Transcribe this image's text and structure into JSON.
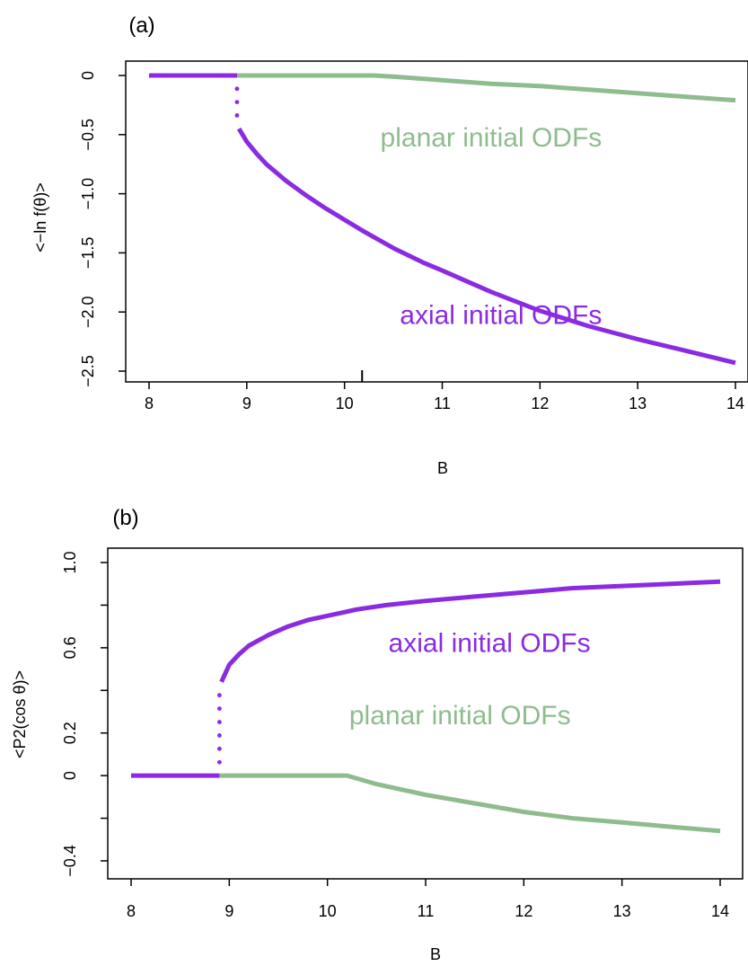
{
  "colors": {
    "axial": "#8a2be2",
    "planar": "#8fbc8f",
    "axis": "#000000"
  },
  "chart_data": [
    {
      "type": "line",
      "panel_label": "(a)",
      "xlabel": "B",
      "ylabel": "<−ln f(θ)>",
      "xlim": [
        8,
        14
      ],
      "ylim": [
        -2.5,
        0
      ],
      "x_ticks": [
        "8",
        "9",
        "10",
        "11",
        "12",
        "13",
        "14"
      ],
      "y_ticks": [
        "0",
        "-0.5",
        "-1.0",
        "-1.5",
        "-2.0",
        "-2.5"
      ],
      "grid": false,
      "marker_x": 10.18,
      "series": [
        {
          "key": "axial",
          "annotation": "axial initial ODFs",
          "annotation_at": [
            11.6,
            -2.1
          ],
          "x": [
            8.0,
            8.9,
            8.92,
            9.0,
            9.1,
            9.2,
            9.4,
            9.6,
            9.8,
            10.0,
            10.2,
            10.5,
            10.8,
            11.0,
            11.5,
            12.0,
            12.5,
            13.0,
            13.5,
            14.0
          ],
          "values": [
            0,
            0,
            -0.45,
            -0.56,
            -0.66,
            -0.75,
            -0.89,
            -1.01,
            -1.12,
            -1.22,
            -1.32,
            -1.46,
            -1.58,
            -1.65,
            -1.83,
            -1.99,
            -2.12,
            -2.23,
            -2.33,
            -2.43
          ],
          "jump": {
            "x": 8.9,
            "from": 0,
            "to": -0.45,
            "style": "dotted"
          }
        },
        {
          "key": "planar",
          "annotation": "planar initial ODFs",
          "annotation_at": [
            11.5,
            -0.6
          ],
          "x": [
            8.9,
            9.5,
            10.0,
            10.3,
            10.5,
            11.0,
            11.5,
            12.0,
            12.5,
            13.0,
            13.5,
            14.0
          ],
          "values": [
            0,
            0,
            0,
            0,
            -0.01,
            -0.04,
            -0.07,
            -0.09,
            -0.12,
            -0.15,
            -0.18,
            -0.21
          ]
        }
      ]
    },
    {
      "type": "line",
      "panel_label": "(b)",
      "xlabel": "B",
      "ylabel": "<P2(cos θ)>",
      "xlim": [
        8,
        14
      ],
      "ylim": [
        -0.4,
        1.0
      ],
      "x_ticks": [
        "8",
        "9",
        "10",
        "11",
        "12",
        "13",
        "14"
      ],
      "y_ticks": [
        "-0.4",
        "0",
        "0.2",
        "0.6",
        "1.0"
      ],
      "y_tick_values": [
        -0.4,
        0,
        0.2,
        0.6,
        1.0
      ],
      "y_minor_ticks": [
        -0.2,
        0.4,
        0.8
      ],
      "grid": false,
      "series": [
        {
          "key": "axial",
          "annotation": "axial initial ODFs",
          "annotation_at": [
            11.65,
            0.58
          ],
          "x": [
            8.0,
            8.9,
            8.92,
            9.0,
            9.1,
            9.2,
            9.4,
            9.6,
            9.8,
            10.0,
            10.3,
            10.6,
            11.0,
            11.5,
            12.0,
            12.5,
            13.0,
            13.5,
            14.0
          ],
          "values": [
            0,
            0,
            0.44,
            0.52,
            0.57,
            0.61,
            0.66,
            0.7,
            0.73,
            0.75,
            0.78,
            0.8,
            0.82,
            0.84,
            0.86,
            0.88,
            0.89,
            0.9,
            0.91
          ],
          "jump": {
            "x": 8.9,
            "from": 0,
            "to": 0.44,
            "style": "dotted"
          }
        },
        {
          "key": "planar",
          "annotation": "planar initial ODFs",
          "annotation_at": [
            11.35,
            0.24
          ],
          "x": [
            8.9,
            9.5,
            10.0,
            10.2,
            10.5,
            11.0,
            11.5,
            12.0,
            12.5,
            13.0,
            13.5,
            14.0
          ],
          "values": [
            0,
            0,
            0,
            0,
            -0.04,
            -0.09,
            -0.13,
            -0.17,
            -0.2,
            -0.22,
            -0.24,
            -0.26
          ]
        }
      ]
    }
  ]
}
